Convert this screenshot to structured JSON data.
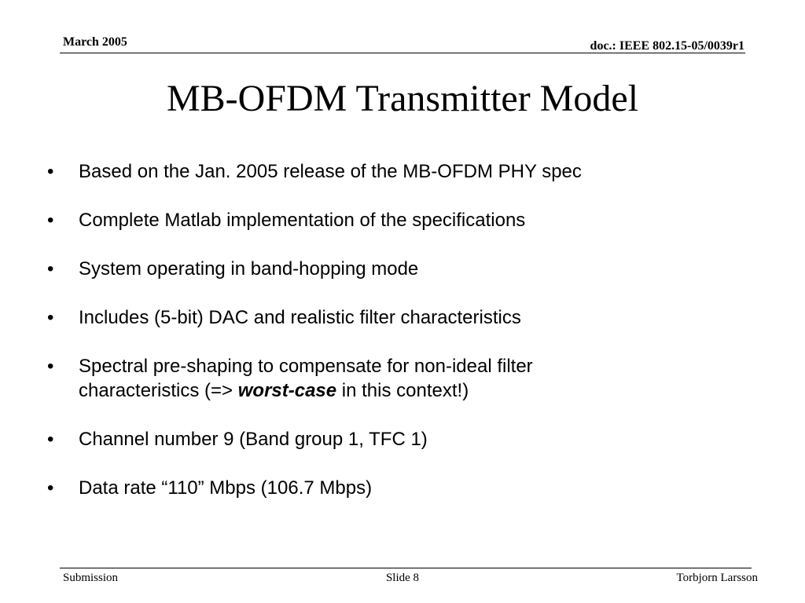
{
  "header": {
    "date": "March 2005",
    "doc_id": "doc.: IEEE 802.15-05/0039r1"
  },
  "title": "MB-OFDM Transmitter Model",
  "bullet_symbol": "•",
  "bullets": [
    {
      "text": "Based on the Jan. 2005 release of the MB-OFDM PHY spec"
    },
    {
      "text": "Complete Matlab implementation of the specifications"
    },
    {
      "text": "System operating in band-hopping mode"
    },
    {
      "text": "Includes (5-bit) DAC and realistic filter characteristics"
    },
    {
      "line1": "Spectral pre-shaping to compensate for non-ideal filter",
      "line2_pre": "characteristics (=> ",
      "line2_em": "worst-case",
      "line2_post": " in this context!)"
    },
    {
      "text": "Channel number 9 (Band group 1, TFC 1)"
    },
    {
      "text": "Data rate “110” Mbps (106.7 Mbps)"
    }
  ],
  "footer": {
    "left": "Submission",
    "center": "Slide 8",
    "right": "Torbjorn Larsson"
  }
}
